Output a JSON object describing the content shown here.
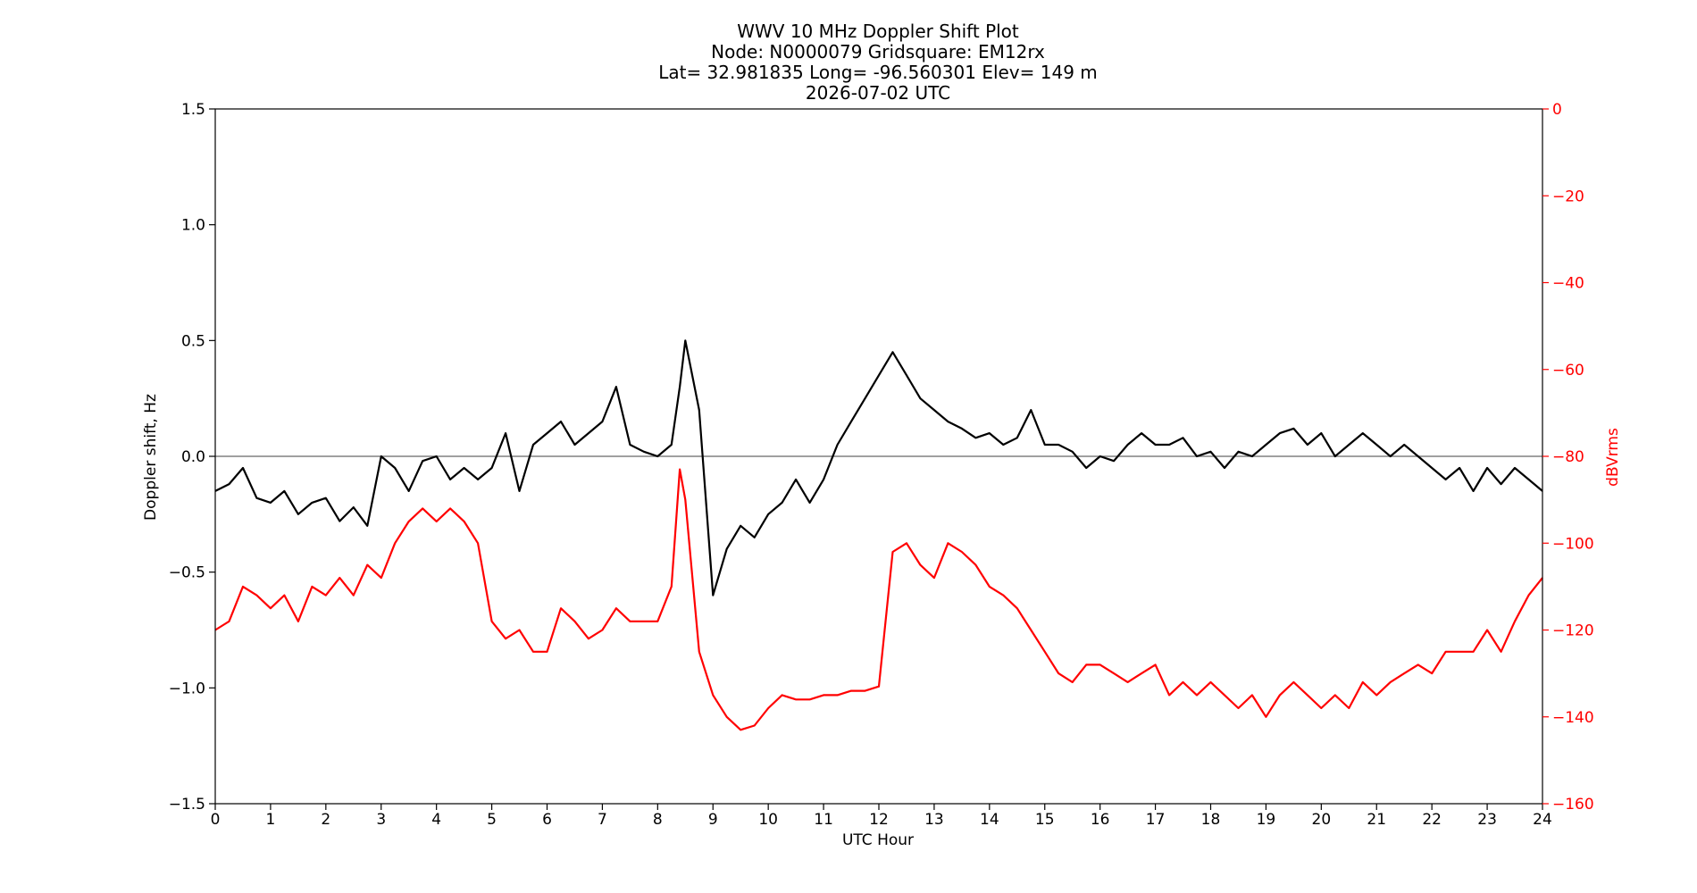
{
  "chart_data": {
    "type": "line",
    "title_lines": [
      "WWV 10 MHz Doppler Shift Plot",
      "Node:  N0000079     Gridsquare:  EM12rx",
      "Lat= 32.981835    Long= -96.560301    Elev= 149 m",
      "2026-07-02  UTC"
    ],
    "xlabel": "UTC Hour",
    "ylabel_left": "Doppler shift, Hz",
    "ylabel_right": "dBVrms",
    "xlim": [
      0,
      24
    ],
    "ylim_left": [
      -1.5,
      1.5
    ],
    "ylim_right": [
      -160,
      0
    ],
    "x_ticks": [
      "0",
      "1",
      "2",
      "3",
      "4",
      "5",
      "6",
      "7",
      "8",
      "9",
      "10",
      "11",
      "12",
      "13",
      "14",
      "15",
      "16",
      "17",
      "18",
      "19",
      "20",
      "21",
      "22",
      "23",
      "24"
    ],
    "y_left_ticks": [
      {
        "value": 1.5,
        "label": "1.5"
      },
      {
        "value": 1.0,
        "label": "1.0"
      },
      {
        "value": 0.5,
        "label": "0.5"
      },
      {
        "value": 0.0,
        "label": "0.0"
      },
      {
        "value": -0.5,
        "label": "−0.5"
      },
      {
        "value": -1.0,
        "label": "−1.0"
      },
      {
        "value": -1.5,
        "label": "−1.5"
      }
    ],
    "y_right_ticks": [
      {
        "value": 0,
        "label": "0"
      },
      {
        "value": -20,
        "label": "−20"
      },
      {
        "value": -40,
        "label": "−40"
      },
      {
        "value": -60,
        "label": "−60"
      },
      {
        "value": -80,
        "label": "−80"
      },
      {
        "value": -100,
        "label": "−100"
      },
      {
        "value": -120,
        "label": "−120"
      },
      {
        "value": -140,
        "label": "−140"
      },
      {
        "value": -160,
        "label": "−160"
      }
    ],
    "zero_line": true,
    "colors": {
      "doppler": "#000000",
      "power": "#ff0000",
      "zero_line": "#808080",
      "right_axis": "#ff0000"
    },
    "series": [
      {
        "axis": "left",
        "x": [
          0,
          0.25,
          0.5,
          0.75,
          1,
          1.25,
          1.5,
          1.75,
          2,
          2.25,
          2.5,
          2.75,
          3,
          3.25,
          3.5,
          3.75,
          4,
          4.25,
          4.5,
          4.75,
          5,
          5.25,
          5.5,
          5.75,
          6,
          6.25,
          6.5,
          6.75,
          7,
          7.25,
          7.5,
          7.75,
          8,
          8.25,
          8.4,
          8.5,
          8.75,
          9,
          9.25,
          9.5,
          9.75,
          10,
          10.25,
          10.5,
          10.75,
          11,
          11.25,
          11.5,
          11.75,
          12,
          12.25,
          12.5,
          12.75,
          13,
          13.25,
          13.5,
          13.75,
          14,
          14.25,
          14.5,
          14.75,
          15,
          15.25,
          15.5,
          15.75,
          16,
          16.25,
          16.5,
          16.75,
          17,
          17.25,
          17.5,
          17.75,
          18,
          18.25,
          18.5,
          18.75,
          19,
          19.25,
          19.5,
          19.75,
          20,
          20.25,
          20.5,
          20.75,
          21,
          21.25,
          21.5,
          21.75,
          22,
          22.25,
          22.5,
          22.75,
          23,
          23.25,
          23.5,
          23.75,
          24
        ],
        "values": [
          -0.15,
          -0.12,
          -0.05,
          -0.18,
          -0.2,
          -0.15,
          -0.25,
          -0.2,
          -0.18,
          -0.28,
          -0.22,
          -0.3,
          0.0,
          -0.05,
          -0.15,
          -0.02,
          0.0,
          -0.1,
          -0.05,
          -0.1,
          -0.05,
          0.1,
          -0.15,
          0.05,
          0.1,
          0.15,
          0.05,
          0.1,
          0.15,
          0.3,
          0.05,
          0.02,
          0.0,
          0.05,
          0.3,
          0.5,
          0.2,
          -0.6,
          -0.4,
          -0.3,
          -0.35,
          -0.25,
          -0.2,
          -0.1,
          -0.2,
          -0.1,
          0.05,
          0.15,
          0.25,
          0.35,
          0.45,
          0.35,
          0.25,
          0.2,
          0.15,
          0.12,
          0.08,
          0.1,
          0.05,
          0.08,
          0.2,
          0.05,
          0.05,
          0.02,
          -0.05,
          0.0,
          -0.02,
          0.05,
          0.1,
          0.05,
          0.05,
          0.08,
          0.0,
          0.02,
          -0.05,
          0.02,
          0.0,
          0.05,
          0.1,
          0.12,
          0.05,
          0.1,
          0.0,
          0.05,
          0.1,
          0.05,
          0.0,
          0.05,
          0.0,
          -0.05,
          -0.1,
          -0.05,
          -0.15,
          -0.05,
          -0.12,
          -0.05,
          -0.1,
          -0.15
        ]
      },
      {
        "axis": "right",
        "x": [
          0,
          0.25,
          0.5,
          0.75,
          1,
          1.25,
          1.5,
          1.75,
          2,
          2.25,
          2.5,
          2.75,
          3,
          3.25,
          3.5,
          3.75,
          4,
          4.25,
          4.5,
          4.75,
          5,
          5.25,
          5.5,
          5.75,
          6,
          6.25,
          6.5,
          6.75,
          7,
          7.25,
          7.5,
          7.75,
          8,
          8.25,
          8.4,
          8.5,
          8.75,
          9,
          9.25,
          9.5,
          9.75,
          10,
          10.25,
          10.5,
          10.75,
          11,
          11.25,
          11.5,
          11.75,
          12,
          12.25,
          12.5,
          12.75,
          13,
          13.25,
          13.5,
          13.75,
          14,
          14.25,
          14.5,
          14.75,
          15,
          15.25,
          15.5,
          15.75,
          16,
          16.25,
          16.5,
          16.75,
          17,
          17.25,
          17.5,
          17.75,
          18,
          18.25,
          18.5,
          18.75,
          19,
          19.25,
          19.5,
          19.75,
          20,
          20.25,
          20.5,
          20.75,
          21,
          21.25,
          21.5,
          21.75,
          22,
          22.25,
          22.5,
          22.75,
          23,
          23.25,
          23.5,
          23.75,
          24
        ],
        "values": [
          -120,
          -118,
          -110,
          -112,
          -115,
          -112,
          -118,
          -110,
          -112,
          -108,
          -112,
          -105,
          -108,
          -100,
          -95,
          -92,
          -95,
          -92,
          -95,
          -100,
          -118,
          -122,
          -120,
          -125,
          -125,
          -115,
          -118,
          -122,
          -120,
          -115,
          -118,
          -118,
          -118,
          -110,
          -83,
          -90,
          -125,
          -135,
          -140,
          -143,
          -142,
          -138,
          -135,
          -136,
          -136,
          -135,
          -135,
          -134,
          -134,
          -133,
          -102,
          -100,
          -105,
          -108,
          -100,
          -102,
          -105,
          -110,
          -112,
          -115,
          -120,
          -125,
          -130,
          -132,
          -128,
          -128,
          -130,
          -132,
          -130,
          -128,
          -135,
          -132,
          -135,
          -132,
          -135,
          -138,
          -135,
          -140,
          -135,
          -132,
          -135,
          -138,
          -135,
          -138,
          -132,
          -135,
          -132,
          -130,
          -128,
          -130,
          -125,
          -125,
          -125,
          -120,
          -125,
          -118,
          -112,
          -108
        ]
      }
    ]
  }
}
